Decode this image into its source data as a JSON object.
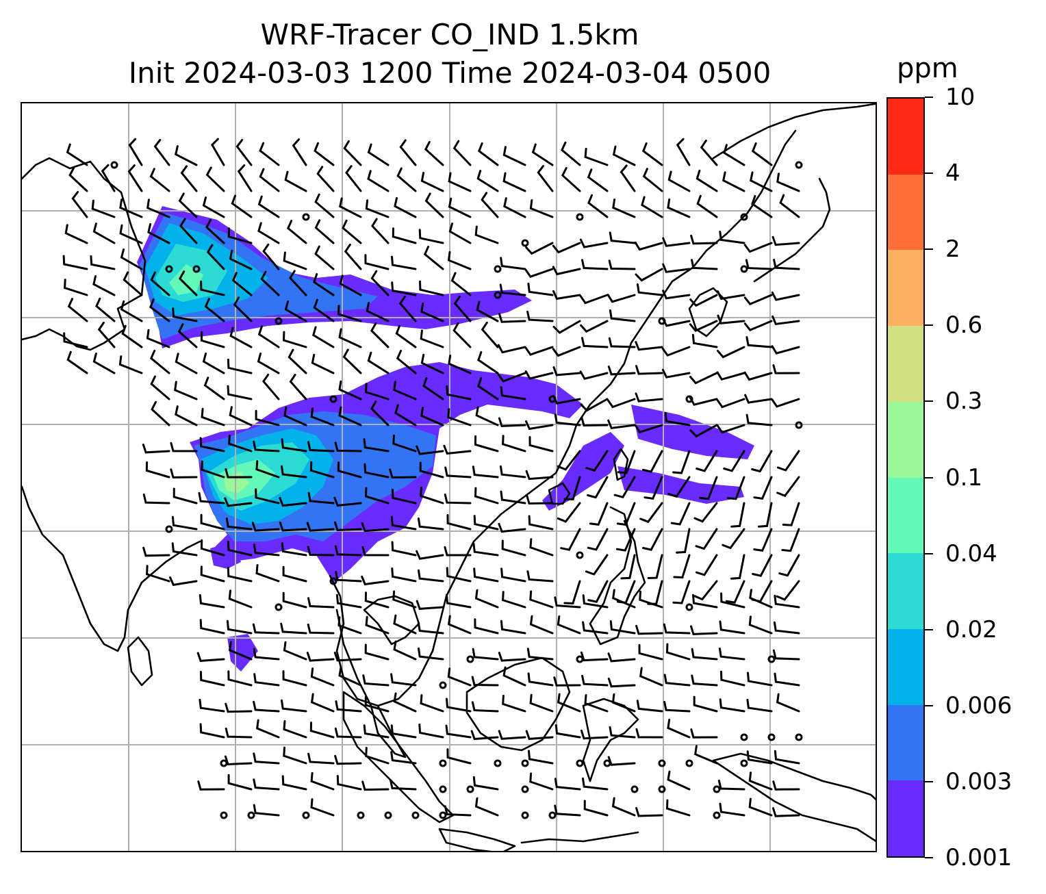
{
  "title": {
    "line1": "WRF-Tracer CO_IND 1.5km",
    "line2": "Init 2024-03-03 1200 Time 2024-03-04 0500"
  },
  "colorbar": {
    "units": "ppm",
    "levels": [
      "0.001",
      "0.003",
      "0.006",
      "0.02",
      "0.04",
      "0.1",
      "0.3",
      "0.6",
      "2",
      "4",
      "10"
    ],
    "colors": [
      "#6a2bff",
      "#3374f5",
      "#03b2ea",
      "#2cdcd4",
      "#65f8bb",
      "#9af79a",
      "#d0e081",
      "#fdb060",
      "#ff6f38",
      "#ff2b17"
    ]
  },
  "map": {
    "gridlines": true,
    "gridline_color": "#b0b0b0",
    "coastline_color": "#000000",
    "wind_barbs": true
  }
}
